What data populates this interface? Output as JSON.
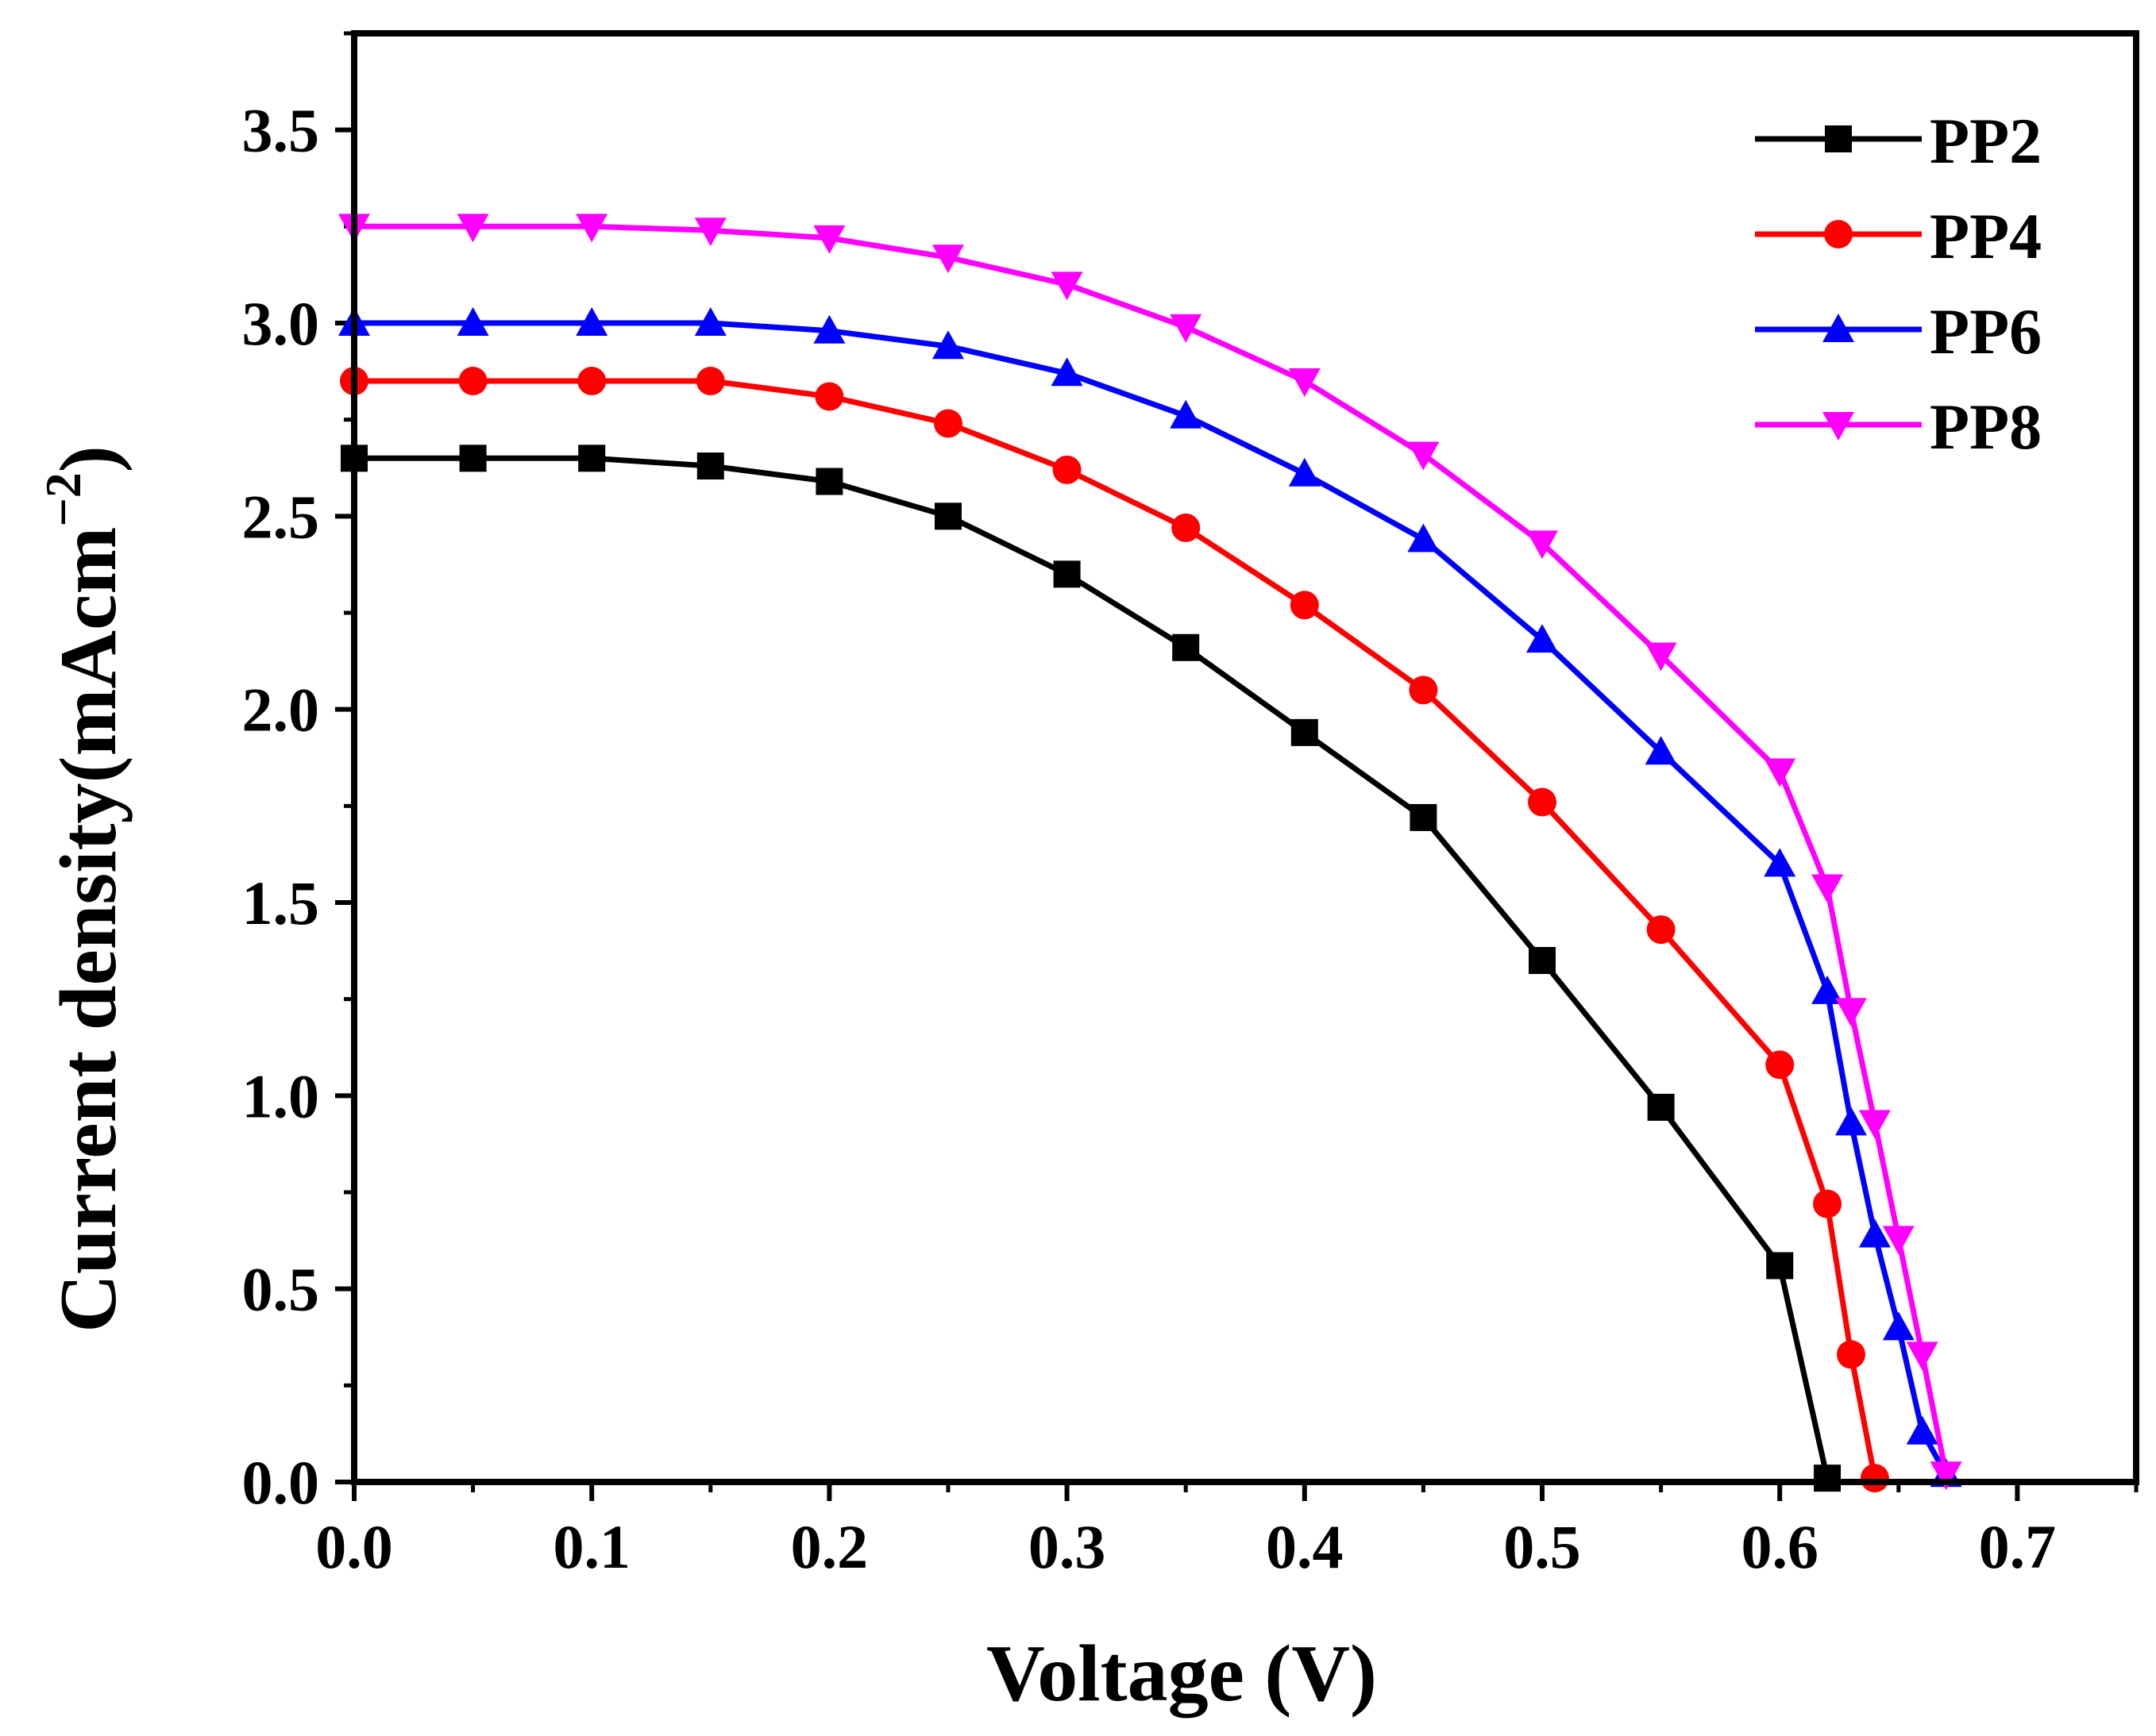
{
  "chart_data": {
    "type": "line",
    "title": "",
    "xlabel": "Voltage (V)",
    "ylabel": {
      "main": "Current density(mAcm",
      "superscript": "−2",
      "close": ")"
    },
    "xlim": [
      0.0,
      0.75
    ],
    "ylim": [
      0.0,
      3.75
    ],
    "grid": false,
    "legend_position": "top-right",
    "x_ticks": [
      {
        "value": 0.0,
        "label": "0.0"
      },
      {
        "value": 0.1,
        "label": "0.1"
      },
      {
        "value": 0.2,
        "label": "0.2"
      },
      {
        "value": 0.3,
        "label": "0.3"
      },
      {
        "value": 0.4,
        "label": "0.4"
      },
      {
        "value": 0.5,
        "label": "0.5"
      },
      {
        "value": 0.6,
        "label": "0.6"
      },
      {
        "value": 0.7,
        "label": "0.7"
      }
    ],
    "y_ticks": [
      {
        "value": 0.0,
        "label": "0.0"
      },
      {
        "value": 0.5,
        "label": "0.5"
      },
      {
        "value": 1.0,
        "label": "1.0"
      },
      {
        "value": 1.5,
        "label": "1.5"
      },
      {
        "value": 2.0,
        "label": "2.0"
      },
      {
        "value": 2.5,
        "label": "2.5"
      },
      {
        "value": 3.0,
        "label": "3.0"
      },
      {
        "value": 3.5,
        "label": "3.5"
      }
    ],
    "series": [
      {
        "name": "PP2",
        "color": "#000000",
        "marker": "square",
        "x": [
          0.0,
          0.05,
          0.1,
          0.15,
          0.2,
          0.25,
          0.3,
          0.35,
          0.4,
          0.45,
          0.5,
          0.55,
          0.6,
          0.62
        ],
        "y": [
          2.65,
          2.65,
          2.65,
          2.63,
          2.59,
          2.5,
          2.35,
          2.16,
          1.94,
          1.72,
          1.35,
          0.97,
          0.56,
          0.01
        ]
      },
      {
        "name": "PP4",
        "color": "#ff0000",
        "marker": "circle",
        "x": [
          0.0,
          0.05,
          0.1,
          0.15,
          0.2,
          0.25,
          0.3,
          0.35,
          0.4,
          0.45,
          0.5,
          0.55,
          0.6,
          0.62,
          0.63,
          0.64
        ],
        "y": [
          2.85,
          2.85,
          2.85,
          2.85,
          2.81,
          2.74,
          2.62,
          2.47,
          2.27,
          2.05,
          1.76,
          1.43,
          1.08,
          0.72,
          0.33,
          0.01
        ]
      },
      {
        "name": "PP6",
        "color": "#0000ff",
        "marker": "triangle-up",
        "x": [
          0.0,
          0.05,
          0.1,
          0.15,
          0.2,
          0.25,
          0.3,
          0.35,
          0.4,
          0.45,
          0.5,
          0.55,
          0.6,
          0.62,
          0.63,
          0.64,
          0.65,
          0.66,
          0.67
        ],
        "y": [
          3.0,
          3.0,
          3.0,
          3.0,
          2.98,
          2.94,
          2.87,
          2.76,
          2.61,
          2.44,
          2.18,
          1.89,
          1.6,
          1.27,
          0.93,
          0.64,
          0.4,
          0.13,
          0.02
        ]
      },
      {
        "name": "PP8",
        "color": "#ff00ff",
        "marker": "triangle-down",
        "x": [
          0.0,
          0.05,
          0.1,
          0.15,
          0.2,
          0.25,
          0.3,
          0.35,
          0.4,
          0.45,
          0.5,
          0.55,
          0.6,
          0.62,
          0.63,
          0.64,
          0.65,
          0.66,
          0.67
        ],
        "y": [
          3.25,
          3.25,
          3.25,
          3.24,
          3.22,
          3.17,
          3.1,
          2.99,
          2.85,
          2.66,
          2.43,
          2.14,
          1.84,
          1.54,
          1.22,
          0.93,
          0.63,
          0.33,
          0.02
        ]
      }
    ]
  }
}
